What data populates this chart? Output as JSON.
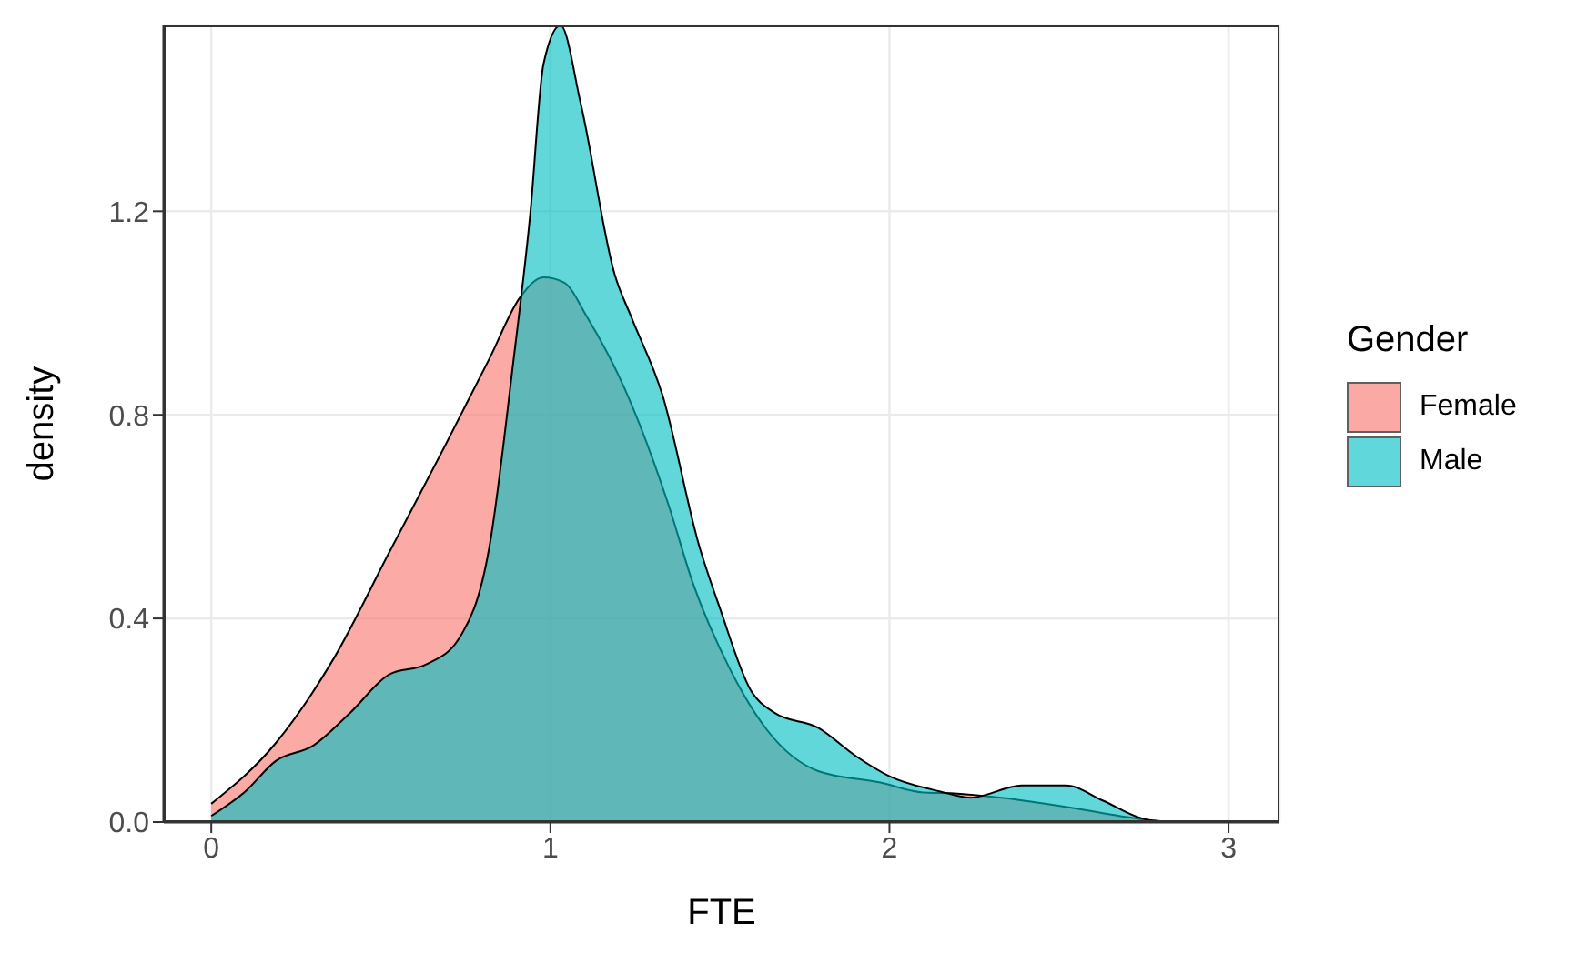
{
  "chart_data": {
    "type": "area",
    "xlabel": "FTE",
    "ylabel": "density",
    "legend_title": "Gender",
    "xlim": [
      -0.14,
      3.15
    ],
    "xticks": [
      0,
      1,
      2,
      3
    ],
    "ylim": [
      0,
      1.565
    ],
    "yticks": [
      {
        "value": 0,
        "label": "0.0"
      },
      0.4,
      0.8,
      1.2
    ],
    "grid": true,
    "legend": "right",
    "series": [
      {
        "name": "Female",
        "color": "#f8766d",
        "x": [
          0,
          0.19,
          0.36,
          0.525,
          0.69,
          0.82,
          0.91,
          0.98,
          1.04,
          1.11,
          1.22,
          1.35,
          1.42,
          1.53,
          1.64,
          1.79,
          1.97,
          2.1,
          2.2,
          2.33,
          2.52,
          2.74,
          2.83
        ],
        "values": [
          0.036,
          0.155,
          0.32,
          0.53,
          0.74,
          0.91,
          1.03,
          1.07,
          1.06,
          0.99,
          0.85,
          0.62,
          0.47,
          0.3,
          0.18,
          0.1,
          0.078,
          0.058,
          0.056,
          0.048,
          0.03,
          0.006,
          0
        ]
      },
      {
        "name": "Male",
        "color": "#00bfc4",
        "x": [
          0,
          0.1,
          0.19,
          0.3,
          0.41,
          0.525,
          0.635,
          0.73,
          0.82,
          0.89,
          0.94,
          0.98,
          1.03,
          1.09,
          1.19,
          1.24,
          1.33,
          1.44,
          1.5,
          1.59,
          1.66,
          1.79,
          1.9,
          2.0,
          2.15,
          2.24,
          2.39,
          2.52,
          2.63,
          2.74,
          2.8
        ],
        "values": [
          0.012,
          0.06,
          0.12,
          0.15,
          0.215,
          0.29,
          0.31,
          0.36,
          0.54,
          0.9,
          1.19,
          1.49,
          1.565,
          1.41,
          1.075,
          0.99,
          0.84,
          0.54,
          0.42,
          0.26,
          0.215,
          0.185,
          0.13,
          0.09,
          0.06,
          0.048,
          0.072,
          0.072,
          0.042,
          0.008,
          0
        ]
      }
    ]
  }
}
